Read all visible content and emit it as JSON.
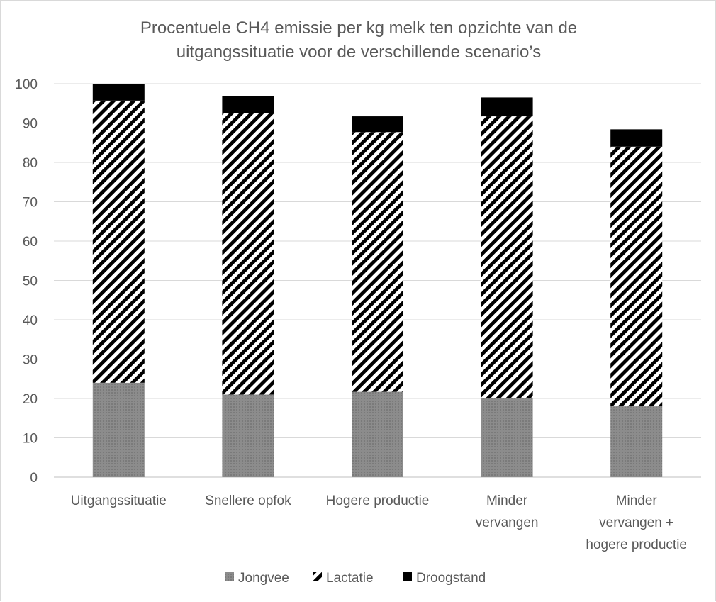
{
  "chart_data": {
    "type": "bar",
    "stacked": true,
    "title": [
      "Procentuele CH4 emissie per kg melk ten opzichte van de",
      "uitgangssituatie voor de verschillende scenario’s"
    ],
    "categories": [
      [
        "Uitgangssituatie"
      ],
      [
        "Snellere opfok"
      ],
      [
        "Hogere productie"
      ],
      [
        "Minder",
        "vervangen"
      ],
      [
        "Minder",
        "vervangen +",
        "hogere productie"
      ]
    ],
    "series": [
      {
        "name": "Jongvee",
        "pattern": "solid-gray",
        "color": "#808080",
        "values": [
          24,
          21,
          21.7,
          20,
          18
        ]
      },
      {
        "name": "Lactatie",
        "pattern": "diagonal-hatch",
        "color": "#000000",
        "values": [
          71.7,
          71.5,
          66,
          71.7,
          66
        ]
      },
      {
        "name": "Droogstand",
        "pattern": "solid-black",
        "color": "#000000",
        "values": [
          4.3,
          4.4,
          4,
          4.8,
          4.4
        ]
      }
    ],
    "ylim": [
      0,
      100
    ],
    "yticks": [
      0,
      10,
      20,
      30,
      40,
      50,
      60,
      70,
      80,
      90,
      100
    ],
    "grid": true,
    "legend_position": "bottom"
  }
}
